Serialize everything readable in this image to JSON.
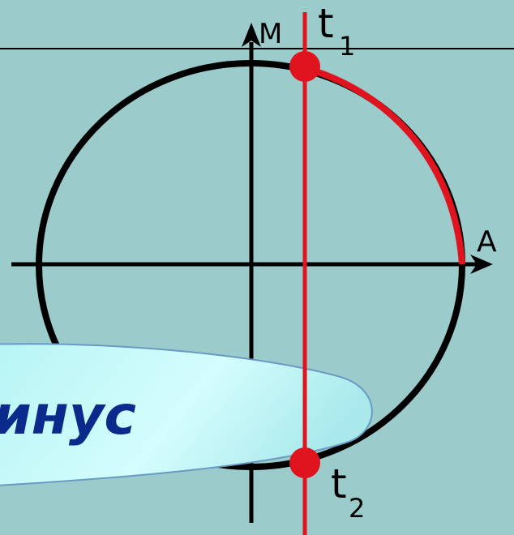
{
  "labels": {
    "m_axis": "M",
    "a_axis": "A",
    "point1_base": "t",
    "point1_sub": "1",
    "point2_base": "t",
    "point2_sub": "2"
  },
  "banner": {
    "word": "инус"
  },
  "colors": {
    "background": "#9ccbcb",
    "circle": "#000000",
    "vertical_line": "#e0141e",
    "arc": "#e0141e",
    "points": "#e0141e",
    "banner_fill": "#c6fbfb",
    "banner_text": "#0b2a8c"
  }
}
